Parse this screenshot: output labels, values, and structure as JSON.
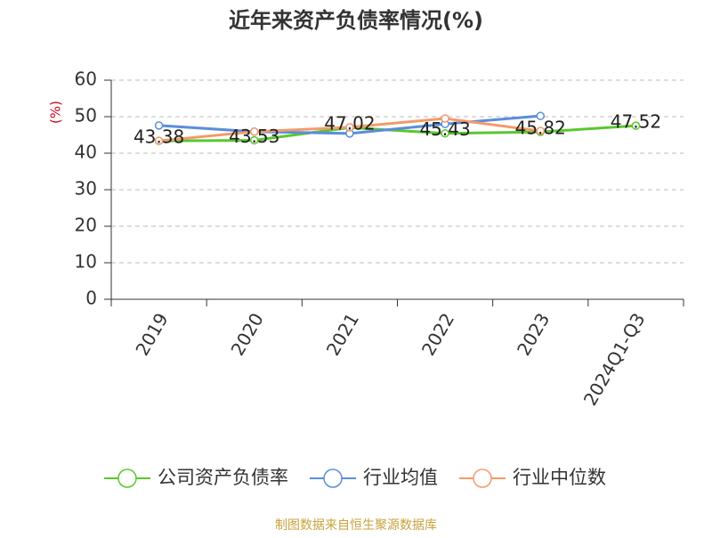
{
  "chart_data": {
    "type": "line",
    "title": "近年来资产负债率情况(%)",
    "y_label": "(%)",
    "source": "制图数据来自恒生聚源数据库",
    "categories": [
      "2019",
      "2020",
      "2021",
      "2022",
      "2023",
      "2024Q1-Q3"
    ],
    "series": [
      {
        "name": "公司资产负债率",
        "color": "#5ac72e",
        "values": [
          43.38,
          43.53,
          47.02,
          45.43,
          45.82,
          47.52
        ],
        "labels": true
      },
      {
        "name": "行业均值",
        "color": "#5b8ddb",
        "values": [
          47.6,
          45.9,
          45.4,
          48.0,
          50.2,
          null
        ]
      },
      {
        "name": "行业中位数",
        "color": "#f39a6b",
        "values": [
          43.4,
          45.9,
          47.1,
          49.5,
          46.1,
          null
        ]
      }
    ],
    "ylim": [
      0,
      60
    ],
    "yticks": [
      0,
      10,
      20,
      30,
      40,
      50,
      60
    ],
    "grid": true,
    "legend": "bottom"
  }
}
